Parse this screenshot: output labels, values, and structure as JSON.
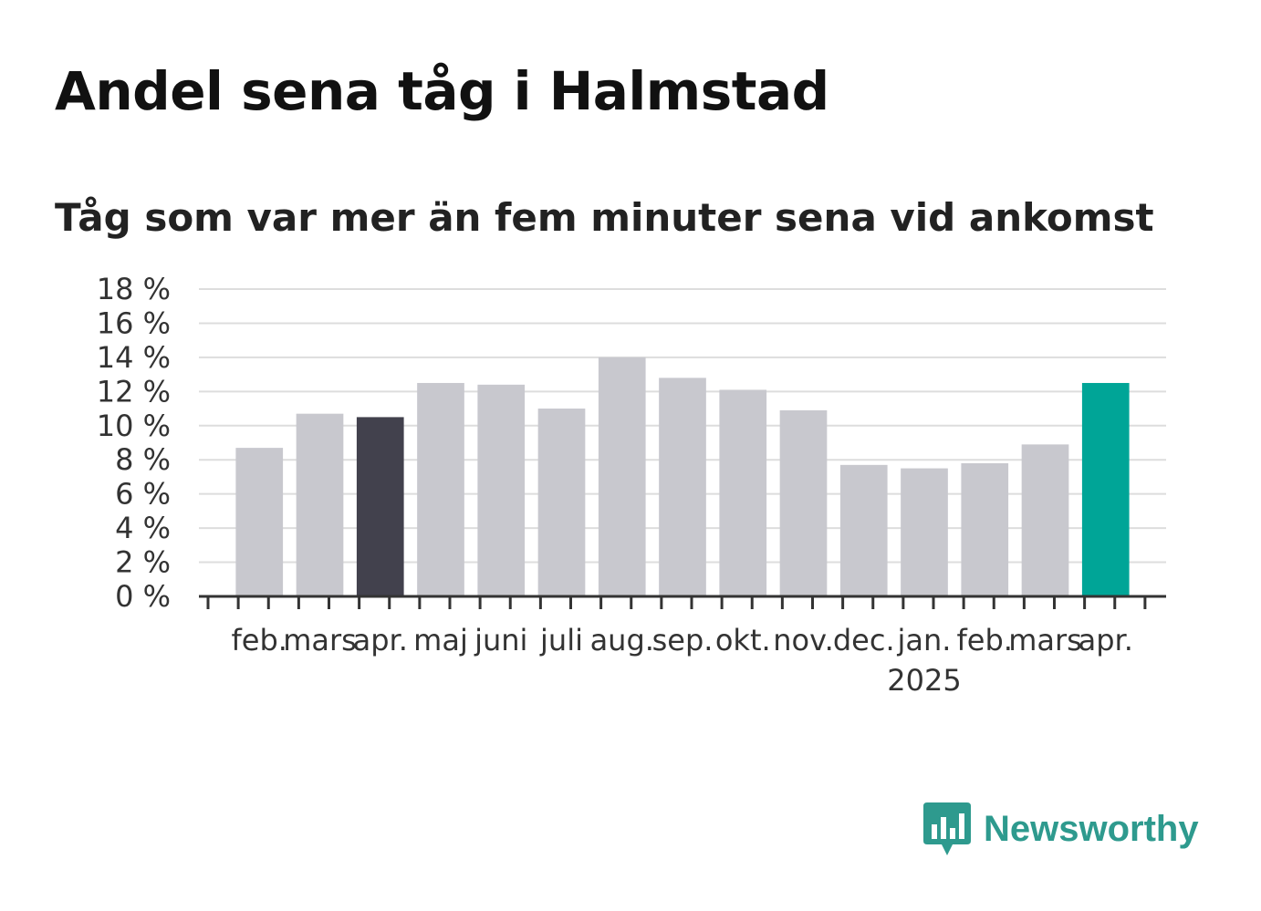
{
  "chart_data": {
    "type": "bar",
    "title": "Andel sena tåg i Halmstad",
    "subtitle": "Tåg som var mer än fem minuter sena vid ankomst",
    "categories": [
      "feb.",
      "mars",
      "apr.",
      "maj",
      "juni",
      "juli",
      "aug.",
      "sep.",
      "okt.",
      "nov.",
      "dec.",
      "jan.",
      "feb.",
      "mars",
      "apr."
    ],
    "year_label": {
      "text": "2025",
      "category_index": 11
    },
    "values": [
      8.7,
      10.7,
      10.5,
      12.5,
      12.4,
      11.0,
      14.0,
      12.8,
      12.1,
      10.9,
      7.7,
      7.5,
      7.8,
      8.9,
      12.5
    ],
    "bar_colors": [
      "#c8c8ce",
      "#c8c8ce",
      "#42414d",
      "#c8c8ce",
      "#c8c8ce",
      "#c8c8ce",
      "#c8c8ce",
      "#c8c8ce",
      "#c8c8ce",
      "#c8c8ce",
      "#c8c8ce",
      "#c8c8ce",
      "#c8c8ce",
      "#c8c8ce",
      "#00a597"
    ],
    "yticks": [
      "0 %",
      "2 %",
      "4 %",
      "6 %",
      "8 %",
      "10 %",
      "12 %",
      "14 %",
      "16 %",
      "18 %"
    ],
    "ylim": [
      0,
      18
    ],
    "grid": true,
    "xlabel": "",
    "ylabel": ""
  },
  "brand": {
    "name": "Newsworthy",
    "logo_icon": "newsworthy-logo-icon",
    "color": "#2e9a8e"
  }
}
